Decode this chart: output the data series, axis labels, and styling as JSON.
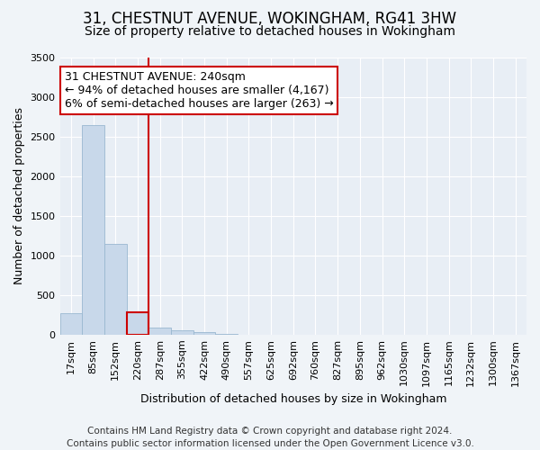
{
  "title": "31, CHESTNUT AVENUE, WOKINGHAM, RG41 3HW",
  "subtitle": "Size of property relative to detached houses in Wokingham",
  "xlabel": "Distribution of detached houses by size in Wokingham",
  "ylabel": "Number of detached properties",
  "bin_labels": [
    "17sqm",
    "85sqm",
    "152sqm",
    "220sqm",
    "287sqm",
    "355sqm",
    "422sqm",
    "490sqm",
    "557sqm",
    "625sqm",
    "692sqm",
    "760sqm",
    "827sqm",
    "895sqm",
    "962sqm",
    "1030sqm",
    "1097sqm",
    "1165sqm",
    "1232sqm",
    "1300sqm",
    "1367sqm"
  ],
  "bar_heights": [
    270,
    2650,
    1150,
    280,
    90,
    50,
    30,
    10,
    3,
    2,
    1,
    0,
    0,
    0,
    0,
    0,
    0,
    0,
    0,
    0,
    0
  ],
  "bar_color": "#c8d8ea",
  "bar_edge_color": "#9ab8d0",
  "highlight_bar_index": 3,
  "highlight_bar_edge_color": "#cc0000",
  "vline_color": "#cc0000",
  "vline_index": 3,
  "annotation_line1": "31 CHESTNUT AVENUE: 240sqm",
  "annotation_line2": "← 94% of detached houses are smaller (4,167)",
  "annotation_line3": "6% of semi-detached houses are larger (263) →",
  "annotation_box_color": "#ffffff",
  "annotation_box_edge_color": "#cc0000",
  "ylim": [
    0,
    3500
  ],
  "yticks": [
    0,
    500,
    1000,
    1500,
    2000,
    2500,
    3000,
    3500
  ],
  "footer": "Contains HM Land Registry data © Crown copyright and database right 2024.\nContains public sector information licensed under the Open Government Licence v3.0.",
  "bg_color": "#f0f4f8",
  "plot_bg_color": "#e8eef5",
  "grid_color": "#ffffff",
  "title_fontsize": 12,
  "subtitle_fontsize": 10,
  "xlabel_fontsize": 9,
  "ylabel_fontsize": 9,
  "annotation_fontsize": 9,
  "footer_fontsize": 7.5,
  "tick_fontsize": 8
}
